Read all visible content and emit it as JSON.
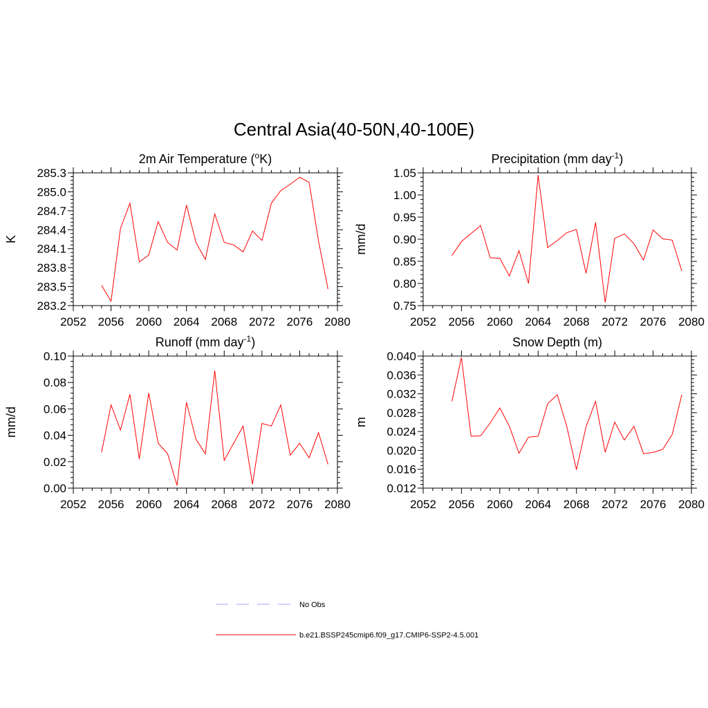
{
  "figure": {
    "title": "Central Asia(40-50N,40-100E)"
  },
  "legend": [
    {
      "label": "No Obs",
      "style": "dashed",
      "color": "#a0a0ff"
    },
    {
      "label": "b.e21.BSSP245cmip6.f09_g17.CMIP6-SSP2-4.5.001",
      "style": "solid",
      "color": "#ff0000"
    }
  ],
  "chart_data": [
    {
      "type": "line",
      "title": "2m Air Temperature (",
      "title_sup": "o",
      "title_suffix": "K)",
      "xlabel": "",
      "ylabel": "K",
      "xlim": [
        2052,
        2080
      ],
      "ylim": [
        283.2,
        285.3
      ],
      "xticks": [
        2052,
        2056,
        2060,
        2064,
        2068,
        2072,
        2076,
        2080
      ],
      "xtick_labels": [
        "2052",
        "2056",
        "2060",
        "2064",
        "2068",
        "2072",
        "2076",
        "2080"
      ],
      "yticks": [
        283.2,
        283.5,
        283.8,
        284.1,
        284.4,
        284.7,
        285.0,
        285.3
      ],
      "ytick_labels": [
        "283.2",
        "283.5",
        "283.8",
        "284.1",
        "284.4",
        "284.7",
        "285.0",
        "285.3"
      ],
      "grid": false,
      "series": [
        {
          "name": "b.e21.BSSP245cmip6.f09_g17.CMIP6-SSP2-4.5.001",
          "color": "#ff0000",
          "x": [
            2055,
            2056,
            2057,
            2058,
            2059,
            2060,
            2061,
            2062,
            2063,
            2064,
            2065,
            2066,
            2067,
            2068,
            2069,
            2070,
            2071,
            2072,
            2073,
            2074,
            2075,
            2076,
            2077,
            2078,
            2079
          ],
          "values": [
            283.52,
            283.27,
            284.42,
            284.82,
            283.89,
            284.0,
            284.53,
            284.2,
            284.08,
            284.79,
            284.2,
            283.93,
            284.65,
            284.2,
            284.16,
            284.05,
            284.38,
            284.23,
            284.82,
            285.02,
            285.12,
            285.23,
            285.15,
            284.22,
            283.46
          ]
        }
      ]
    },
    {
      "type": "line",
      "title": "Precipitation (mm day",
      "title_sup": "-1",
      "title_suffix": ")",
      "xlabel": "",
      "ylabel": "mm/d",
      "xlim": [
        2052,
        2080
      ],
      "ylim": [
        0.75,
        1.05
      ],
      "xticks": [
        2052,
        2056,
        2060,
        2064,
        2068,
        2072,
        2076,
        2080
      ],
      "xtick_labels": [
        "2052",
        "2056",
        "2060",
        "2064",
        "2068",
        "2072",
        "2076",
        "2080"
      ],
      "yticks": [
        0.75,
        0.8,
        0.85,
        0.9,
        0.95,
        1.0,
        1.05
      ],
      "ytick_labels": [
        "0.75",
        "0.80",
        "0.85",
        "0.90",
        "0.95",
        "1.00",
        "1.05"
      ],
      "grid": false,
      "series": [
        {
          "name": "b.e21.BSSP245cmip6.f09_g17.CMIP6-SSP2-4.5.001",
          "color": "#ff0000",
          "x": [
            2055,
            2056,
            2057,
            2058,
            2059,
            2060,
            2061,
            2062,
            2063,
            2064,
            2065,
            2066,
            2067,
            2068,
            2069,
            2070,
            2071,
            2072,
            2073,
            2074,
            2075,
            2076,
            2077,
            2078,
            2079
          ],
          "values": [
            0.863,
            0.895,
            0.913,
            0.931,
            0.858,
            0.857,
            0.817,
            0.874,
            0.8,
            1.045,
            0.881,
            0.897,
            0.915,
            0.922,
            0.823,
            0.938,
            0.757,
            0.902,
            0.912,
            0.89,
            0.853,
            0.921,
            0.901,
            0.898,
            0.828
          ]
        }
      ]
    },
    {
      "type": "line",
      "title": "Runoff (mm day",
      "title_sup": "-1",
      "title_suffix": ")",
      "xlabel": "",
      "ylabel": "mm/d",
      "xlim": [
        2052,
        2080
      ],
      "ylim": [
        0.0,
        0.1
      ],
      "xticks": [
        2052,
        2056,
        2060,
        2064,
        2068,
        2072,
        2076,
        2080
      ],
      "xtick_labels": [
        "2052",
        "2056",
        "2060",
        "2064",
        "2068",
        "2072",
        "2076",
        "2080"
      ],
      "yticks": [
        0.0,
        0.02,
        0.04,
        0.06,
        0.08,
        0.1
      ],
      "ytick_labels": [
        "0.00",
        "0.02",
        "0.04",
        "0.06",
        "0.08",
        "0.10"
      ],
      "grid": false,
      "series": [
        {
          "name": "b.e21.BSSP245cmip6.f09_g17.CMIP6-SSP2-4.5.001",
          "color": "#ff0000",
          "x": [
            2055,
            2056,
            2057,
            2058,
            2059,
            2060,
            2061,
            2062,
            2063,
            2064,
            2065,
            2066,
            2067,
            2068,
            2069,
            2070,
            2071,
            2072,
            2073,
            2074,
            2075,
            2076,
            2077,
            2078,
            2079
          ],
          "values": [
            0.027,
            0.063,
            0.044,
            0.071,
            0.022,
            0.072,
            0.034,
            0.026,
            0.002,
            0.065,
            0.037,
            0.026,
            0.089,
            0.021,
            0.034,
            0.047,
            0.003,
            0.049,
            0.047,
            0.063,
            0.025,
            0.034,
            0.023,
            0.042,
            0.018
          ]
        }
      ]
    },
    {
      "type": "line",
      "title": "Snow Depth (m)",
      "title_sup": "",
      "title_suffix": "",
      "xlabel": "",
      "ylabel": "m",
      "xlim": [
        2052,
        2080
      ],
      "ylim": [
        0.012,
        0.04
      ],
      "xticks": [
        2052,
        2056,
        2060,
        2064,
        2068,
        2072,
        2076,
        2080
      ],
      "xtick_labels": [
        "2052",
        "2056",
        "2060",
        "2064",
        "2068",
        "2072",
        "2076",
        "2080"
      ],
      "yticks": [
        0.012,
        0.016,
        0.02,
        0.024,
        0.028,
        0.032,
        0.036,
        0.04
      ],
      "ytick_labels": [
        "0.012",
        "0.016",
        "0.020",
        "0.024",
        "0.028",
        "0.032",
        "0.036",
        "0.040"
      ],
      "grid": false,
      "series": [
        {
          "name": "b.e21.BSSP245cmip6.f09_g17.CMIP6-SSP2-4.5.001",
          "color": "#ff0000",
          "x": [
            2055,
            2056,
            2057,
            2058,
            2059,
            2060,
            2061,
            2062,
            2063,
            2064,
            2065,
            2066,
            2067,
            2068,
            2069,
            2070,
            2071,
            2072,
            2073,
            2074,
            2075,
            2076,
            2077,
            2078,
            2079
          ],
          "values": [
            0.0304,
            0.0397,
            0.023,
            0.0231,
            0.0258,
            0.029,
            0.0251,
            0.0194,
            0.0228,
            0.023,
            0.0299,
            0.0318,
            0.025,
            0.0159,
            0.025,
            0.0304,
            0.0196,
            0.026,
            0.0222,
            0.0251,
            0.0193,
            0.0196,
            0.0202,
            0.0234,
            0.0318
          ]
        }
      ]
    }
  ]
}
